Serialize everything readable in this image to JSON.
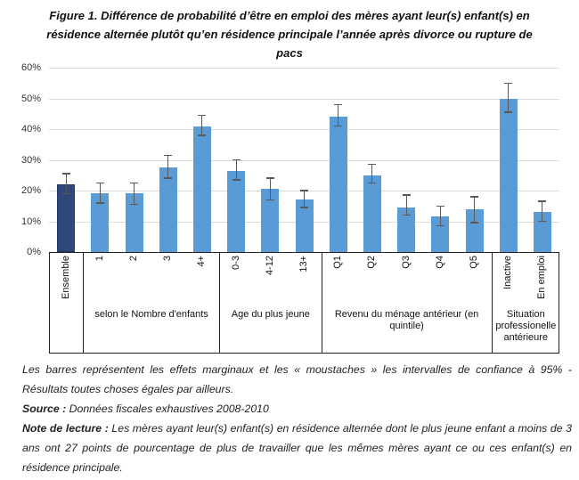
{
  "title": "Figure 1. Différence de probabilité d’être en emploi des mères ayant leur(s) enfant(s) en résidence alternée plutôt qu’en résidence principale l’année après divorce ou rupture de pacs",
  "chart_data": {
    "type": "bar",
    "title": "Figure 1. Différence de probabilité d’être en emploi des mères ayant leur(s) enfant(s) en résidence alternée plutôt qu’en résidence principale l’année après divorce ou rupture de pacs",
    "xlabel": "",
    "ylabel": "",
    "ylim": [
      0,
      60
    ],
    "grid": true,
    "legend": "none",
    "y_ticks": [
      "60%",
      "50%",
      "40%",
      "30%",
      "20%",
      "10%",
      "0%"
    ],
    "error_bars": "95% confidence intervals",
    "bars": [
      {
        "label": "Ensemble",
        "value": 22,
        "ci_low": 19,
        "ci_high": 25.5,
        "color": "dark"
      },
      {
        "label": "1",
        "value": 19,
        "ci_low": 16,
        "ci_high": 22.5,
        "color": "light"
      },
      {
        "label": "2",
        "value": 19,
        "ci_low": 15.5,
        "ci_high": 22.5,
        "color": "light"
      },
      {
        "label": "3",
        "value": 27.5,
        "ci_low": 24,
        "ci_high": 31.5,
        "color": "light"
      },
      {
        "label": "4+",
        "value": 41,
        "ci_low": 38,
        "ci_high": 44.5,
        "color": "light"
      },
      {
        "label": "0-3",
        "value": 26.5,
        "ci_low": 23.5,
        "ci_high": 30,
        "color": "light"
      },
      {
        "label": "4-12",
        "value": 20.5,
        "ci_low": 17,
        "ci_high": 24,
        "color": "light"
      },
      {
        "label": "13+",
        "value": 17,
        "ci_low": 14.5,
        "ci_high": 20,
        "color": "light"
      },
      {
        "label": "Q1",
        "value": 44,
        "ci_low": 41,
        "ci_high": 48,
        "color": "light"
      },
      {
        "label": "Q2",
        "value": 25,
        "ci_low": 22.5,
        "ci_high": 28.5,
        "color": "light"
      },
      {
        "label": "Q3",
        "value": 14.5,
        "ci_low": 12,
        "ci_high": 18.5,
        "color": "light"
      },
      {
        "label": "Q4",
        "value": 11.5,
        "ci_low": 8.5,
        "ci_high": 15,
        "color": "light"
      },
      {
        "label": "Q5",
        "value": 14,
        "ci_low": 9.5,
        "ci_high": 18,
        "color": "light"
      },
      {
        "label": "Inactive",
        "value": 50,
        "ci_low": 45.5,
        "ci_high": 55,
        "color": "light"
      },
      {
        "label": "En emploi",
        "value": 13,
        "ci_low": 10,
        "ci_high": 16.5,
        "color": "light"
      }
    ],
    "groups": [
      {
        "label": "",
        "span": 1
      },
      {
        "label": "selon le Nombre d'enfants",
        "span": 4
      },
      {
        "label": "Age du plus jeune",
        "span": 3
      },
      {
        "label": "Revenu du ménage antérieur (en quintile)",
        "span": 5
      },
      {
        "label": "Situation professionelle antérieure",
        "span": 2
      }
    ],
    "colors": {
      "bar_light": "#5B9BD5",
      "bar_dark": "#2F4779",
      "bar_dark_border": "#243A66",
      "error": "#595959",
      "grid": "#dcdcdc",
      "axis_box": "#222222"
    }
  },
  "footnotes": {
    "caption": "Les barres représentent les effets marginaux et les « moustaches » les intervalles de confiance à 95% - Résultats toutes choses égales par ailleurs.",
    "source_label": "Source :",
    "source_text": " Données fiscales exhaustives 2008-2010",
    "note_label": "Note de lecture :",
    "note_text": " Les mères ayant leur(s) enfant(s) en résidence alternée dont le plus jeune enfant a moins de 3 ans ont 27 points de pourcentage de plus de travailler que les mêmes mères ayant ce ou ces enfant(s) en résidence principale."
  }
}
